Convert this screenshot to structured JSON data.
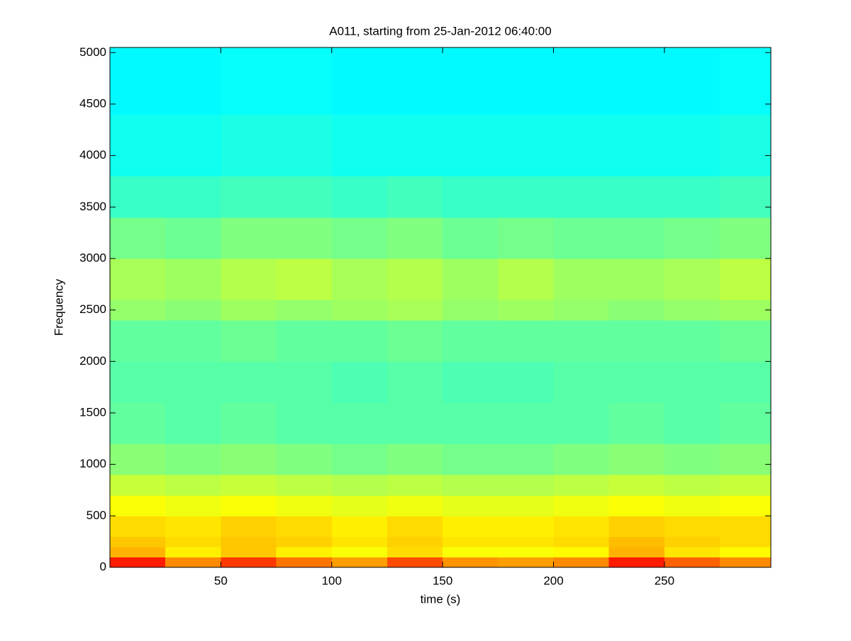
{
  "chart_data": {
    "type": "heatmap",
    "title": "A011, starting from 25-Jan-2012 06:40:00",
    "x_label": "time (s)",
    "y_label": "Frequency",
    "xlim": [
      0,
      298
    ],
    "ylim": [
      0,
      5050
    ],
    "xticks": [
      50,
      100,
      150,
      200,
      250
    ],
    "yticks": [
      0,
      500,
      1000,
      1500,
      2000,
      2500,
      3000,
      3500,
      4000,
      4500,
      5000
    ],
    "colormap": "jet",
    "clim": [
      0,
      1
    ],
    "x_bins": [
      0,
      25,
      50,
      75,
      100,
      125,
      150,
      175,
      200,
      225,
      250,
      275,
      298
    ],
    "y_bins": [
      0,
      100,
      200,
      300,
      500,
      700,
      900,
      1200,
      1600,
      2000,
      2400,
      2600,
      3000,
      3400,
      3800,
      4400,
      5050
    ],
    "values": [
      [
        0.85,
        0.74,
        0.82,
        0.76,
        0.72,
        0.8,
        0.73,
        0.72,
        0.74,
        0.85,
        0.78,
        0.74
      ],
      [
        0.7,
        0.64,
        0.68,
        0.64,
        0.62,
        0.66,
        0.62,
        0.62,
        0.63,
        0.7,
        0.65,
        0.63
      ],
      [
        0.68,
        0.66,
        0.68,
        0.67,
        0.65,
        0.67,
        0.65,
        0.65,
        0.66,
        0.69,
        0.67,
        0.66
      ],
      [
        0.66,
        0.65,
        0.67,
        0.66,
        0.64,
        0.66,
        0.64,
        0.64,
        0.65,
        0.67,
        0.66,
        0.66
      ],
      [
        0.62,
        0.61,
        0.62,
        0.61,
        0.6,
        0.61,
        0.6,
        0.6,
        0.61,
        0.62,
        0.61,
        0.62
      ],
      [
        0.57,
        0.56,
        0.57,
        0.56,
        0.55,
        0.56,
        0.55,
        0.55,
        0.56,
        0.57,
        0.56,
        0.57
      ],
      [
        0.51,
        0.5,
        0.51,
        0.5,
        0.49,
        0.5,
        0.49,
        0.49,
        0.5,
        0.51,
        0.5,
        0.51
      ],
      [
        0.47,
        0.46,
        0.47,
        0.46,
        0.46,
        0.46,
        0.46,
        0.46,
        0.46,
        0.47,
        0.46,
        0.47
      ],
      [
        0.46,
        0.46,
        0.46,
        0.46,
        0.45,
        0.46,
        0.45,
        0.45,
        0.46,
        0.46,
        0.46,
        0.46
      ],
      [
        0.47,
        0.47,
        0.48,
        0.47,
        0.47,
        0.48,
        0.47,
        0.47,
        0.47,
        0.47,
        0.47,
        0.48
      ],
      [
        0.52,
        0.51,
        0.53,
        0.52,
        0.53,
        0.54,
        0.52,
        0.53,
        0.52,
        0.51,
        0.52,
        0.53
      ],
      [
        0.54,
        0.53,
        0.55,
        0.56,
        0.54,
        0.55,
        0.53,
        0.55,
        0.53,
        0.53,
        0.54,
        0.56
      ],
      [
        0.49,
        0.48,
        0.5,
        0.5,
        0.49,
        0.5,
        0.48,
        0.49,
        0.48,
        0.48,
        0.49,
        0.5
      ],
      [
        0.43,
        0.43,
        0.44,
        0.44,
        0.43,
        0.44,
        0.43,
        0.43,
        0.43,
        0.43,
        0.43,
        0.44
      ],
      [
        0.39,
        0.39,
        0.4,
        0.4,
        0.39,
        0.39,
        0.39,
        0.39,
        0.39,
        0.39,
        0.39,
        0.4
      ],
      [
        0.37,
        0.37,
        0.38,
        0.38,
        0.37,
        0.37,
        0.37,
        0.37,
        0.37,
        0.37,
        0.37,
        0.38
      ]
    ]
  }
}
